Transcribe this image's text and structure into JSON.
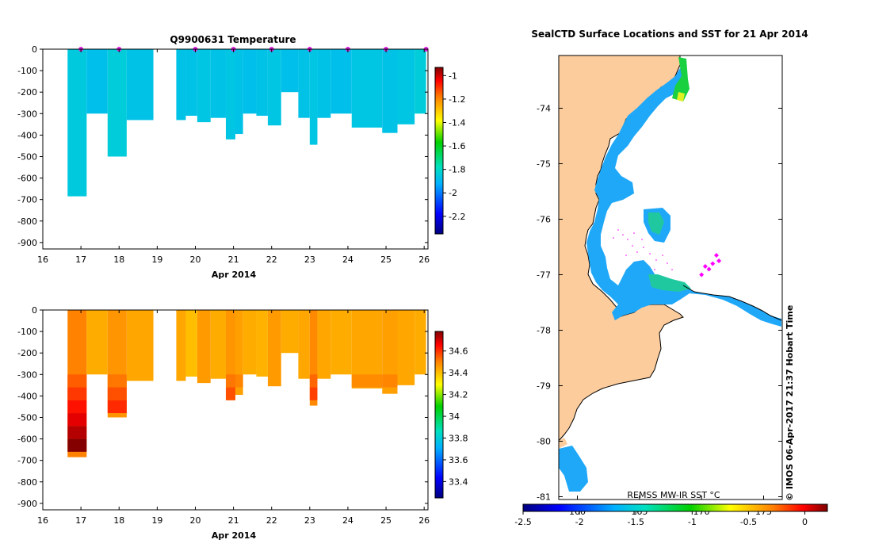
{
  "chart_data": [
    {
      "id": "temperature-section",
      "type": "heatmap",
      "title": "Q9900631  Temperature",
      "xlabel": "Apr 2014",
      "x_ticks": [
        "16",
        "17",
        "18",
        "19",
        "20",
        "21",
        "22",
        "23",
        "24",
        "25",
        "26"
      ],
      "y_ticks": [
        "0",
        "-100",
        "-200",
        "-300",
        "-400",
        "-500",
        "-600",
        "-700",
        "-800",
        "-900"
      ],
      "xlim": [
        16,
        26.1
      ],
      "ylim": [
        -930,
        0
      ],
      "colorbar": {
        "ticks": [
          "-1",
          "-1.2",
          "-1.4",
          "-1.6",
          "-1.8",
          "-2",
          "-2.2"
        ],
        "range": [
          -2.35,
          -0.93
        ]
      },
      "profile_marker_days": [
        17.0,
        18.0,
        20.0,
        21.0,
        22.0,
        23.0,
        24.0,
        25.0,
        26.05
      ],
      "columns": [
        {
          "x0": 16.65,
          "x1": 17.15,
          "depth": 685,
          "value": -1.85
        },
        {
          "x0": 17.15,
          "x1": 17.7,
          "depth": 300,
          "value": -1.88
        },
        {
          "x0": 17.7,
          "x1": 18.2,
          "depth": 500,
          "value": -1.84
        },
        {
          "x0": 18.2,
          "x1": 18.9,
          "depth": 330,
          "value": -1.87
        },
        {
          "x0": 19.5,
          "x1": 19.75,
          "depth": 330,
          "value": -1.87
        },
        {
          "x0": 19.75,
          "x1": 20.05,
          "depth": 310,
          "value": -1.87
        },
        {
          "x0": 20.05,
          "x1": 20.4,
          "depth": 340,
          "value": -1.86
        },
        {
          "x0": 20.4,
          "x1": 20.8,
          "depth": 320,
          "value": -1.87
        },
        {
          "x0": 20.8,
          "x1": 21.05,
          "depth": 420,
          "value": -1.86
        },
        {
          "x0": 21.05,
          "x1": 21.25,
          "depth": 395,
          "value": -1.87
        },
        {
          "x0": 21.25,
          "x1": 21.6,
          "depth": 300,
          "value": -1.88
        },
        {
          "x0": 21.6,
          "x1": 21.9,
          "depth": 310,
          "value": -1.87
        },
        {
          "x0": 21.9,
          "x1": 22.25,
          "depth": 355,
          "value": -1.86
        },
        {
          "x0": 22.25,
          "x1": 22.7,
          "depth": 200,
          "value": -1.88
        },
        {
          "x0": 22.7,
          "x1": 23.0,
          "depth": 320,
          "value": -1.87
        },
        {
          "x0": 23.0,
          "x1": 23.2,
          "depth": 445,
          "value": -1.86
        },
        {
          "x0": 23.2,
          "x1": 23.55,
          "depth": 320,
          "value": -1.87
        },
        {
          "x0": 23.55,
          "x1": 24.1,
          "depth": 300,
          "value": -1.88
        },
        {
          "x0": 24.1,
          "x1": 24.9,
          "depth": 365,
          "value": -1.86
        },
        {
          "x0": 24.9,
          "x1": 25.3,
          "depth": 390,
          "value": -1.87
        },
        {
          "x0": 25.3,
          "x1": 25.75,
          "depth": 350,
          "value": -1.86
        },
        {
          "x0": 25.75,
          "x1": 26.05,
          "depth": 300,
          "value": -1.84
        }
      ]
    },
    {
      "id": "salinity-section",
      "type": "heatmap",
      "title": "",
      "xlabel": "Apr 2014",
      "x_ticks": [
        "16",
        "17",
        "18",
        "19",
        "20",
        "21",
        "22",
        "23",
        "24",
        "25",
        "26"
      ],
      "y_ticks": [
        "0",
        "-100",
        "-200",
        "-300",
        "-400",
        "-500",
        "-600",
        "-700",
        "-800",
        "-900"
      ],
      "xlim": [
        16,
        26.1
      ],
      "ylim": [
        -930,
        0
      ],
      "colorbar": {
        "ticks": [
          "34.6",
          "34.4",
          "34.2",
          "34",
          "33.8",
          "33.6",
          "33.4"
        ],
        "range": [
          33.25,
          34.78
        ]
      },
      "columns": [
        {
          "x0": 16.65,
          "x1": 17.15,
          "depth": 685,
          "value": 34.5
        },
        {
          "x0": 17.15,
          "x1": 17.7,
          "depth": 300,
          "value": 34.43
        },
        {
          "x0": 17.7,
          "x1": 18.2,
          "depth": 500,
          "value": 34.47
        },
        {
          "x0": 18.2,
          "x1": 18.9,
          "depth": 330,
          "value": 34.44
        },
        {
          "x0": 19.5,
          "x1": 19.75,
          "depth": 330,
          "value": 34.44
        },
        {
          "x0": 19.75,
          "x1": 20.05,
          "depth": 310,
          "value": 34.4
        },
        {
          "x0": 20.05,
          "x1": 20.4,
          "depth": 340,
          "value": 34.46
        },
        {
          "x0": 20.4,
          "x1": 20.8,
          "depth": 320,
          "value": 34.43
        },
        {
          "x0": 20.8,
          "x1": 21.05,
          "depth": 420,
          "value": 34.47
        },
        {
          "x0": 21.05,
          "x1": 21.25,
          "depth": 395,
          "value": 34.45
        },
        {
          "x0": 21.25,
          "x1": 21.6,
          "depth": 300,
          "value": 34.43
        },
        {
          "x0": 21.6,
          "x1": 21.9,
          "depth": 310,
          "value": 34.42
        },
        {
          "x0": 21.9,
          "x1": 22.25,
          "depth": 355,
          "value": 34.46
        },
        {
          "x0": 22.25,
          "x1": 22.7,
          "depth": 200,
          "value": 34.43
        },
        {
          "x0": 22.7,
          "x1": 23.0,
          "depth": 320,
          "value": 34.44
        },
        {
          "x0": 23.0,
          "x1": 23.2,
          "depth": 445,
          "value": 34.49
        },
        {
          "x0": 23.2,
          "x1": 23.55,
          "depth": 320,
          "value": 34.44
        },
        {
          "x0": 23.55,
          "x1": 24.1,
          "depth": 300,
          "value": 34.43
        },
        {
          "x0": 24.1,
          "x1": 24.9,
          "depth": 365,
          "value": 34.44
        },
        {
          "x0": 24.9,
          "x1": 25.3,
          "depth": 390,
          "value": 34.45
        },
        {
          "x0": 25.3,
          "x1": 25.75,
          "depth": 350,
          "value": 34.44
        },
        {
          "x0": 25.75,
          "x1": 26.05,
          "depth": 300,
          "value": 34.43
        }
      ]
    },
    {
      "id": "sst-map",
      "type": "heatmap",
      "title": "SealCTD Surface Locations and SST for 21 Apr 2014",
      "lon_ticks": [
        "160",
        "165",
        "170",
        "175"
      ],
      "lat_ticks": [
        "-74",
        "-75",
        "-76",
        "-77",
        "-78",
        "-79",
        "-80",
        "-81"
      ],
      "lat_range": [
        -81.05,
        -73.05
      ],
      "lon_range": [
        158.5,
        176.5
      ],
      "sst_label": "REMSS MW-IR SST °C",
      "sst_colorbar": {
        "ticks": [
          "-2.5",
          "-2",
          "-1.5",
          "-1",
          "-0.5",
          "0"
        ],
        "range": [
          -2.5,
          0.2
        ]
      },
      "credit": "© IMOS 06-Apr-2017 21:37 Hobart Time",
      "seal_locations": [
        {
          "lon": 171.2,
          "lat": -76.65
        },
        {
          "lon": 171.4,
          "lat": -76.75
        },
        {
          "lon": 170.9,
          "lat": -76.8
        },
        {
          "lon": 170.3,
          "lat": -76.85
        },
        {
          "lon": 170.6,
          "lat": -76.9
        },
        {
          "lon": 170.0,
          "lat": -77.0
        }
      ]
    }
  ]
}
